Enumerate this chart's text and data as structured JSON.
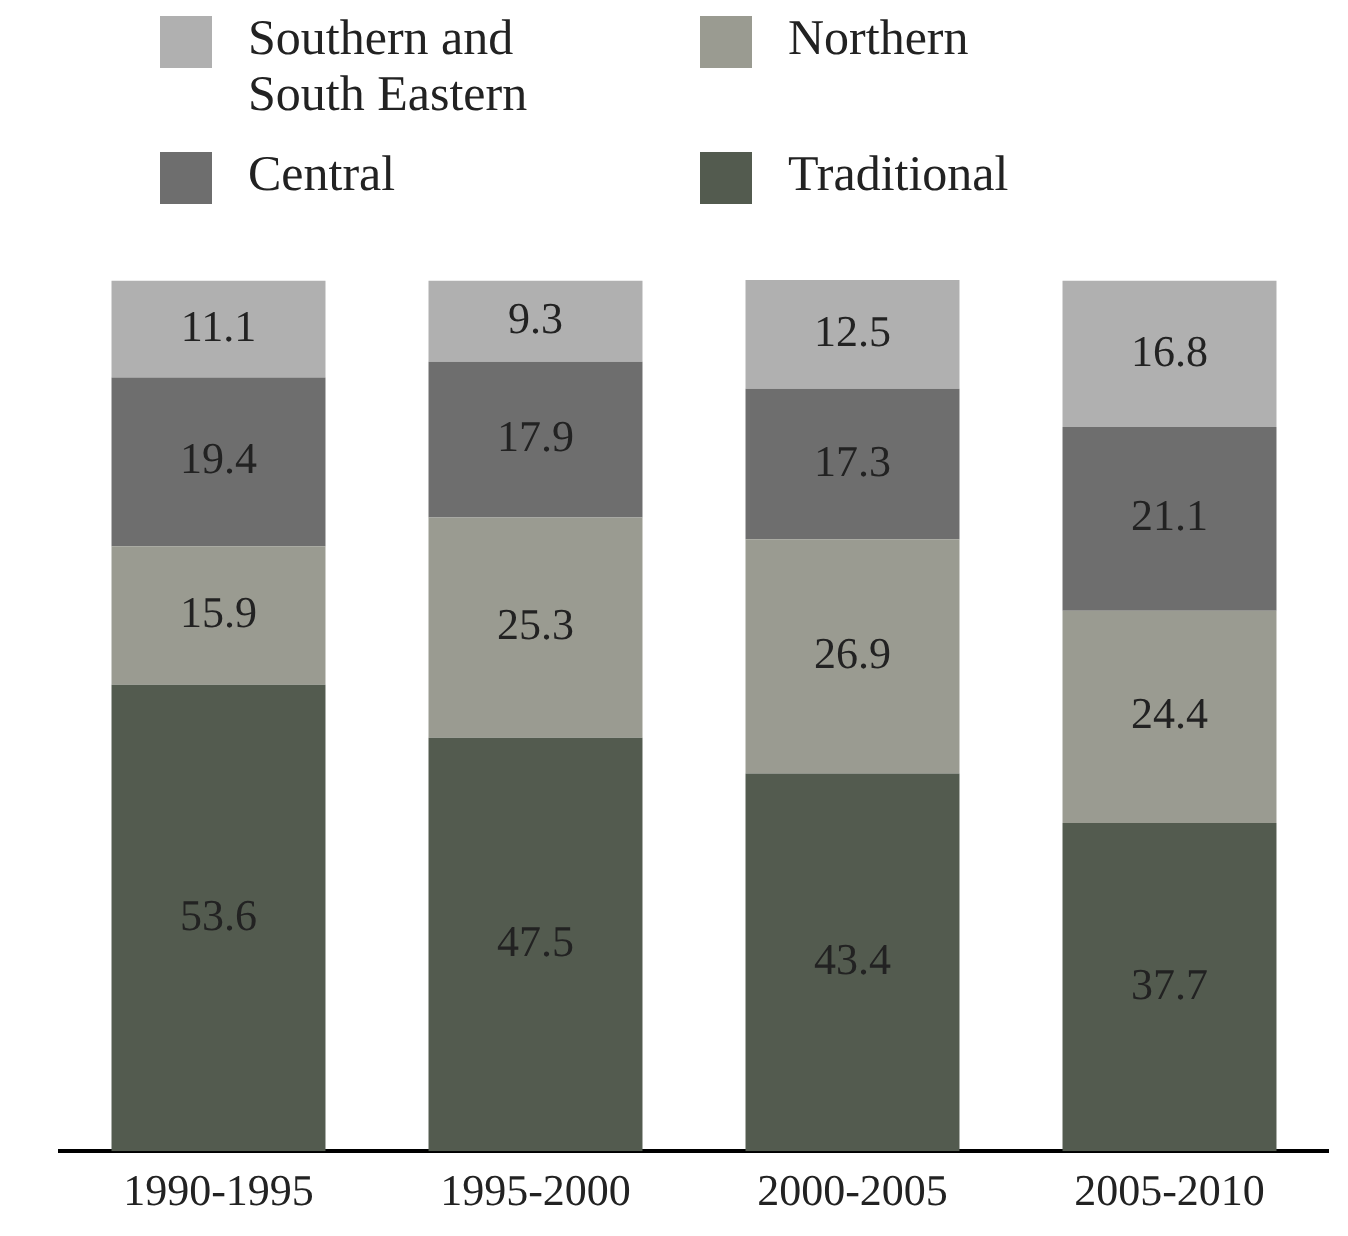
{
  "chart_data": {
    "type": "bar",
    "stacked": true,
    "data_labels": true,
    "legend": "top",
    "categories": [
      "1990-1995",
      "1995-2000",
      "2000-2005",
      "2005-2010"
    ],
    "series": [
      {
        "name": "Traditional",
        "color": "#535b4f",
        "values": [
          53.6,
          47.5,
          43.4,
          37.7
        ]
      },
      {
        "name": "Northern",
        "color": "#9a9b91",
        "values": [
          15.9,
          25.3,
          26.9,
          24.4
        ]
      },
      {
        "name": "Central",
        "color": "#6e6e6e",
        "values": [
          19.4,
          17.9,
          17.3,
          21.1
        ]
      },
      {
        "name": "Southern and South Eastern",
        "color": "#b0b0b0",
        "values": [
          11.1,
          9.3,
          12.5,
          16.8
        ]
      }
    ]
  }
}
